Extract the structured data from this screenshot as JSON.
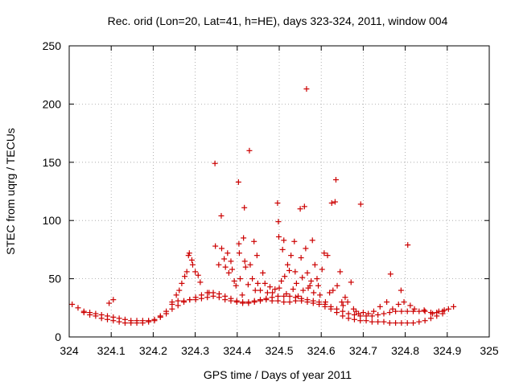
{
  "chart_data": {
    "type": "scatter",
    "title": "Rec. orid (Lon=20, Lat=41, h=HE), days 323-324, 2011, window 004",
    "xlabel": "GPS time / Days of year 2011",
    "ylabel": "STEC from uqrg / TECUs",
    "xlim": [
      324,
      325
    ],
    "ylim": [
      0,
      250
    ],
    "xticks": [
      324,
      324.1,
      324.2,
      324.3,
      324.4,
      324.5,
      324.6,
      324.7,
      324.8,
      324.9,
      325
    ],
    "xtick_labels": [
      "324",
      "324.1",
      "324.2",
      "324.3",
      "324.4",
      "324.5",
      "324.6",
      "324.7",
      "324.8",
      "324.9",
      "325"
    ],
    "yticks": [
      0,
      50,
      100,
      150,
      200,
      250
    ],
    "ytick_labels": [
      "0",
      "50",
      "100",
      "150",
      "200",
      "250"
    ],
    "grid": true,
    "marker": "+",
    "color": "#cc0000",
    "points": [
      [
        324.007,
        28
      ],
      [
        324.021,
        25
      ],
      [
        324.035,
        22
      ],
      [
        324.049,
        21
      ],
      [
        324.063,
        20
      ],
      [
        324.077,
        19
      ],
      [
        324.091,
        18
      ],
      [
        324.105,
        17
      ],
      [
        324.119,
        16
      ],
      [
        324.133,
        15
      ],
      [
        324.147,
        14
      ],
      [
        324.161,
        14
      ],
      [
        324.175,
        14
      ],
      [
        324.189,
        14
      ],
      [
        324.203,
        15
      ],
      [
        324.217,
        17
      ],
      [
        324.231,
        20
      ],
      [
        324.245,
        24
      ],
      [
        324.259,
        27
      ],
      [
        324.273,
        30
      ],
      [
        324.287,
        32
      ],
      [
        324.301,
        34
      ],
      [
        324.315,
        36
      ],
      [
        324.329,
        38
      ],
      [
        324.343,
        38
      ],
      [
        324.357,
        37
      ],
      [
        324.371,
        35
      ],
      [
        324.385,
        33
      ],
      [
        324.399,
        31
      ],
      [
        324.413,
        30
      ],
      [
        324.427,
        30
      ],
      [
        324.441,
        31
      ],
      [
        324.455,
        32
      ],
      [
        324.469,
        33
      ],
      [
        324.483,
        34
      ],
      [
        324.497,
        35
      ],
      [
        324.511,
        35
      ],
      [
        324.525,
        35
      ],
      [
        324.539,
        34
      ],
      [
        324.553,
        33
      ],
      [
        324.567,
        32
      ],
      [
        324.581,
        31
      ],
      [
        324.595,
        30
      ],
      [
        324.609,
        28
      ],
      [
        324.623,
        26
      ],
      [
        324.637,
        24
      ],
      [
        324.651,
        22
      ],
      [
        324.665,
        20
      ],
      [
        324.679,
        19
      ],
      [
        324.693,
        18
      ],
      [
        324.707,
        18
      ],
      [
        324.721,
        18
      ],
      [
        324.735,
        19
      ],
      [
        324.749,
        20
      ],
      [
        324.763,
        21
      ],
      [
        324.777,
        22
      ],
      [
        324.791,
        22
      ],
      [
        324.805,
        22
      ],
      [
        324.819,
        22
      ],
      [
        324.833,
        22
      ],
      [
        324.847,
        22
      ],
      [
        324.861,
        21
      ],
      [
        324.875,
        21
      ],
      [
        324.889,
        22
      ],
      [
        324.903,
        24
      ],
      [
        324.915,
        26
      ],
      [
        324.035,
        21
      ],
      [
        324.049,
        19
      ],
      [
        324.063,
        18
      ],
      [
        324.077,
        16
      ],
      [
        324.091,
        15
      ],
      [
        324.105,
        14
      ],
      [
        324.119,
        13
      ],
      [
        324.133,
        12
      ],
      [
        324.147,
        12
      ],
      [
        324.161,
        12
      ],
      [
        324.175,
        12
      ],
      [
        324.189,
        13
      ],
      [
        324.203,
        14
      ],
      [
        324.217,
        18
      ],
      [
        324.231,
        22
      ],
      [
        324.245,
        28
      ],
      [
        324.259,
        31
      ],
      [
        324.273,
        31
      ],
      [
        324.287,
        32
      ],
      [
        324.301,
        32
      ],
      [
        324.315,
        33
      ],
      [
        324.329,
        34
      ],
      [
        324.343,
        35
      ],
      [
        324.357,
        34
      ],
      [
        324.371,
        32
      ],
      [
        324.385,
        31
      ],
      [
        324.399,
        30
      ],
      [
        324.413,
        29
      ],
      [
        324.427,
        29
      ],
      [
        324.441,
        30
      ],
      [
        324.455,
        31
      ],
      [
        324.469,
        32
      ],
      [
        324.483,
        31
      ],
      [
        324.497,
        31
      ],
      [
        324.511,
        30
      ],
      [
        324.525,
        30
      ],
      [
        324.539,
        31
      ],
      [
        324.553,
        31
      ],
      [
        324.567,
        30
      ],
      [
        324.581,
        29
      ],
      [
        324.595,
        28
      ],
      [
        324.609,
        26
      ],
      [
        324.623,
        24
      ],
      [
        324.637,
        21
      ],
      [
        324.651,
        18
      ],
      [
        324.665,
        16
      ],
      [
        324.679,
        15
      ],
      [
        324.693,
        14
      ],
      [
        324.707,
        14
      ],
      [
        324.721,
        13
      ],
      [
        324.735,
        13
      ],
      [
        324.749,
        13
      ],
      [
        324.763,
        12
      ],
      [
        324.777,
        12
      ],
      [
        324.791,
        12
      ],
      [
        324.805,
        12
      ],
      [
        324.819,
        12
      ],
      [
        324.833,
        13
      ],
      [
        324.847,
        14
      ],
      [
        324.861,
        16
      ],
      [
        324.875,
        18
      ],
      [
        324.889,
        20
      ],
      [
        324.095,
        29
      ],
      [
        324.105,
        32
      ],
      [
        324.245,
        30
      ],
      [
        324.255,
        36
      ],
      [
        324.262,
        40
      ],
      [
        324.268,
        46
      ],
      [
        324.275,
        52
      ],
      [
        324.28,
        56
      ],
      [
        324.284,
        70
      ],
      [
        324.286,
        72
      ],
      [
        324.292,
        66
      ],
      [
        324.294,
        62
      ],
      [
        324.3,
        56
      ],
      [
        324.307,
        53
      ],
      [
        324.312,
        47
      ],
      [
        324.333,
        38
      ],
      [
        324.347,
        149
      ],
      [
        324.348,
        78
      ],
      [
        324.356,
        62
      ],
      [
        324.362,
        104
      ],
      [
        324.363,
        76
      ],
      [
        324.369,
        67
      ],
      [
        324.372,
        60
      ],
      [
        324.377,
        72
      ],
      [
        324.38,
        55
      ],
      [
        324.385,
        65
      ],
      [
        324.388,
        58
      ],
      [
        324.393,
        48
      ],
      [
        324.397,
        44
      ],
      [
        324.403,
        133
      ],
      [
        324.404,
        80
      ],
      [
        324.405,
        72
      ],
      [
        324.407,
        50
      ],
      [
        324.412,
        36
      ],
      [
        324.415,
        85
      ],
      [
        324.417,
        111
      ],
      [
        324.418,
        65
      ],
      [
        324.42,
        60
      ],
      [
        324.426,
        45
      ],
      [
        324.429,
        160
      ],
      [
        324.431,
        62
      ],
      [
        324.436,
        50
      ],
      [
        324.44,
        82
      ],
      [
        324.443,
        40
      ],
      [
        324.447,
        70
      ],
      [
        324.449,
        46
      ],
      [
        324.455,
        40
      ],
      [
        324.461,
        55
      ],
      [
        324.466,
        46
      ],
      [
        324.472,
        38
      ],
      [
        324.478,
        43
      ],
      [
        324.484,
        38
      ],
      [
        324.49,
        41
      ],
      [
        324.496,
        115
      ],
      [
        324.498,
        99
      ],
      [
        324.499,
        86
      ],
      [
        324.5,
        42
      ],
      [
        324.505,
        48
      ],
      [
        324.508,
        75
      ],
      [
        324.511,
        83
      ],
      [
        324.513,
        52
      ],
      [
        324.517,
        37
      ],
      [
        324.52,
        62
      ],
      [
        324.524,
        57
      ],
      [
        324.528,
        70
      ],
      [
        324.533,
        41
      ],
      [
        324.536,
        82
      ],
      [
        324.538,
        56
      ],
      [
        324.541,
        46
      ],
      [
        324.545,
        35
      ],
      [
        324.55,
        110
      ],
      [
        324.552,
        68
      ],
      [
        324.555,
        51
      ],
      [
        324.557,
        40
      ],
      [
        324.56,
        112
      ],
      [
        324.563,
        76
      ],
      [
        324.565,
        213
      ],
      [
        324.567,
        55
      ],
      [
        324.569,
        42
      ],
      [
        324.573,
        44
      ],
      [
        324.576,
        48
      ],
      [
        324.579,
        83
      ],
      [
        324.582,
        38
      ],
      [
        324.585,
        62
      ],
      [
        324.59,
        50
      ],
      [
        324.593,
        44
      ],
      [
        324.597,
        36
      ],
      [
        324.602,
        58
      ],
      [
        324.607,
        72
      ],
      [
        324.61,
        30
      ],
      [
        324.615,
        70
      ],
      [
        324.62,
        38
      ],
      [
        324.625,
        115
      ],
      [
        324.628,
        40
      ],
      [
        324.633,
        116
      ],
      [
        324.635,
        135
      ],
      [
        324.638,
        44
      ],
      [
        324.645,
        56
      ],
      [
        324.649,
        30
      ],
      [
        324.652,
        27
      ],
      [
        324.657,
        34
      ],
      [
        324.663,
        30
      ],
      [
        324.671,
        47
      ],
      [
        324.677,
        24
      ],
      [
        324.683,
        22
      ],
      [
        324.689,
        20
      ],
      [
        324.694,
        114
      ],
      [
        324.7,
        21
      ],
      [
        324.712,
        20
      ],
      [
        324.725,
        22
      ],
      [
        324.74,
        26
      ],
      [
        324.756,
        30
      ],
      [
        324.765,
        54
      ],
      [
        324.77,
        24
      ],
      [
        324.784,
        28
      ],
      [
        324.79,
        40
      ],
      [
        324.797,
        30
      ],
      [
        324.806,
        79
      ],
      [
        324.812,
        27
      ],
      [
        324.822,
        24
      ],
      [
        324.845,
        23
      ],
      [
        324.865,
        20
      ],
      [
        324.88,
        22
      ],
      [
        324.893,
        23
      ]
    ]
  }
}
